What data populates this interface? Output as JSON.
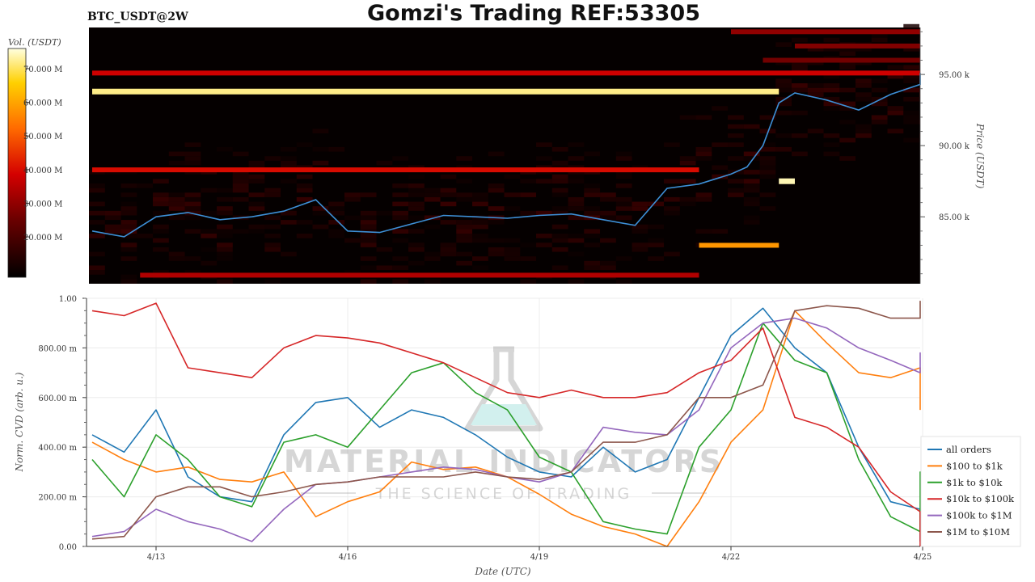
{
  "header": {
    "left_label": "BTC_USDT@2W",
    "title": "Gomzi's Trading REF:53305"
  },
  "watermark": {
    "brand": "MATERIAL INDICATORS",
    "tagline": "THE SCIENCE OF TRADING"
  },
  "chart_data": [
    {
      "type": "heatmap",
      "title": "BTC_USDT@2W",
      "colorbar": {
        "label": "Vol. (USDT)",
        "ticks": [
          "70.000 M",
          "60.000 M",
          "50.000 M",
          "40.000 M",
          "30.000 M",
          "20.000 M"
        ],
        "tick_values": [
          70,
          60,
          50,
          40,
          30,
          20
        ],
        "range": [
          8,
          76
        ]
      },
      "y_axis": {
        "label": "Price (USDT)",
        "ticks": [
          "95.00 k",
          "90.00 k",
          "85.00 k"
        ],
        "tick_values": [
          95,
          90,
          85
        ],
        "range": [
          80.3,
          98.3
        ]
      },
      "x_range": [
        "2025-04-12",
        "2025-04-25 18:00"
      ],
      "price_line_color": "#3d8fd6",
      "price_series": {
        "x": [
          "04-12 00:00",
          "04-12 12:00",
          "04-13 00:00",
          "04-13 12:00",
          "04-14 00:00",
          "04-14 12:00",
          "04-15 00:00",
          "04-15 12:00",
          "04-16 00:00",
          "04-16 12:00",
          "04-17 00:00",
          "04-17 12:00",
          "04-18 00:00",
          "04-18 12:00",
          "04-19 00:00",
          "04-19 12:00",
          "04-20 00:00",
          "04-20 12:00",
          "04-21 00:00",
          "04-21 12:00",
          "04-22 00:00",
          "04-22 06:00",
          "04-22 12:00",
          "04-22 18:00",
          "04-23 00:00",
          "04-23 12:00",
          "04-24 00:00",
          "04-24 12:00",
          "04-25 00:00",
          "04-25 12:00",
          "04-25 18:00"
        ],
        "y": [
          84.0,
          83.6,
          85.0,
          85.3,
          84.8,
          85.0,
          85.4,
          86.2,
          84.0,
          83.9,
          84.5,
          85.1,
          85.0,
          84.9,
          85.1,
          85.2,
          84.8,
          84.4,
          87.0,
          87.3,
          88.0,
          88.5,
          90.0,
          93.0,
          93.7,
          93.2,
          92.5,
          93.6,
          94.3,
          95.1,
          94.7
        ]
      },
      "order_bands": [
        {
          "price": 95.1,
          "x": [
            "04-12",
            "04-25 18:00"
          ],
          "level": "medium-high",
          "vol_m": 38
        },
        {
          "price": 93.8,
          "x": [
            "04-12",
            "04-22 18:00"
          ],
          "level": "very high",
          "vol_m": 72
        },
        {
          "price": 88.3,
          "x": [
            "04-12",
            "04-21 12:00"
          ],
          "level": "high",
          "vol_m": 40
        },
        {
          "price": 83.0,
          "x": [
            "04-21 12:00",
            "04-22 18:00"
          ],
          "level": "orange",
          "vol_m": 58
        },
        {
          "price": 80.9,
          "x": [
            "04-12 18:00",
            "04-21 12:00"
          ],
          "level": "medium-high",
          "vol_m": 34
        },
        {
          "price": 87.5,
          "x": [
            "04-22 18:00",
            "04-23 00:00"
          ],
          "level": "very high",
          "vol_m": 74
        },
        {
          "price": 98.0,
          "x": [
            "04-22 00:00",
            "04-25 18:00"
          ],
          "level": "medium",
          "vol_m": 30
        },
        {
          "price": 97.0,
          "x": [
            "04-23 00:00",
            "04-25 18:00"
          ],
          "level": "medium",
          "vol_m": 28
        },
        {
          "price": 96.0,
          "x": [
            "04-22 12:00",
            "04-25 18:00"
          ],
          "level": "medium",
          "vol_m": 26
        }
      ]
    },
    {
      "type": "line",
      "xlabel": "Date (UTC)",
      "ylabel": "Norm. CVD (arb. u.)",
      "x_ticks": [
        "4/13",
        "4/16",
        "4/19",
        "4/22",
        "4/25"
      ],
      "y_ticks": [
        "1.00",
        "800.00 m",
        "600.00 m",
        "400.00 m",
        "200.00 m",
        "0.00"
      ],
      "y_tick_values": [
        1.0,
        0.8,
        0.6,
        0.4,
        0.2,
        0.0
      ],
      "ylim": [
        0,
        1
      ],
      "grid": true,
      "legend_placement": "right",
      "x": [
        "04-12 00:00",
        "04-12 12:00",
        "04-13 00:00",
        "04-13 12:00",
        "04-14 00:00",
        "04-14 12:00",
        "04-15 00:00",
        "04-15 12:00",
        "04-16 00:00",
        "04-16 12:00",
        "04-17 00:00",
        "04-17 12:00",
        "04-18 00:00",
        "04-18 12:00",
        "04-19 00:00",
        "04-19 12:00",
        "04-20 00:00",
        "04-20 12:00",
        "04-21 00:00",
        "04-21 12:00",
        "04-22 00:00",
        "04-22 12:00",
        "04-23 00:00",
        "04-23 12:00",
        "04-24 00:00",
        "04-24 12:00",
        "04-25 00:00",
        "04-25 12:00",
        "04-25 18:00"
      ],
      "series": [
        {
          "name": "all orders",
          "color": "#1f77b4",
          "values": [
            0.45,
            0.38,
            0.55,
            0.28,
            0.2,
            0.18,
            0.45,
            0.58,
            0.6,
            0.48,
            0.55,
            0.52,
            0.45,
            0.36,
            0.3,
            0.28,
            0.4,
            0.3,
            0.35,
            0.6,
            0.85,
            0.96,
            0.8,
            0.7,
            0.4,
            0.18,
            0.15,
            0.12,
            0.02
          ]
        },
        {
          "name": "$100 to $1k",
          "color": "#ff7f0e",
          "values": [
            0.42,
            0.35,
            0.3,
            0.32,
            0.27,
            0.26,
            0.3,
            0.12,
            0.18,
            0.22,
            0.34,
            0.31,
            0.32,
            0.28,
            0.21,
            0.13,
            0.08,
            0.05,
            0.0,
            0.18,
            0.42,
            0.55,
            0.95,
            0.82,
            0.7,
            0.68,
            0.72,
            0.65,
            0.55
          ]
        },
        {
          "name": "$1k to $10k",
          "color": "#2ca02c",
          "values": [
            0.35,
            0.2,
            0.45,
            0.35,
            0.2,
            0.16,
            0.42,
            0.45,
            0.4,
            0.55,
            0.7,
            0.74,
            0.62,
            0.55,
            0.36,
            0.3,
            0.1,
            0.07,
            0.05,
            0.4,
            0.55,
            0.9,
            0.75,
            0.7,
            0.35,
            0.12,
            0.06,
            0.3,
            0.08
          ]
        },
        {
          "name": "$10k to $100k",
          "color": "#d62728",
          "values": [
            0.95,
            0.93,
            0.98,
            0.72,
            0.7,
            0.68,
            0.8,
            0.85,
            0.84,
            0.82,
            0.78,
            0.74,
            0.68,
            0.62,
            0.6,
            0.63,
            0.6,
            0.6,
            0.62,
            0.7,
            0.75,
            0.88,
            0.52,
            0.48,
            0.4,
            0.22,
            0.14,
            0.12,
            0.0
          ]
        },
        {
          "name": "$100k to $1M",
          "color": "#9467bd",
          "values": [
            0.04,
            0.06,
            0.15,
            0.1,
            0.07,
            0.02,
            0.15,
            0.25,
            0.26,
            0.28,
            0.3,
            0.32,
            0.31,
            0.28,
            0.26,
            0.3,
            0.48,
            0.46,
            0.45,
            0.55,
            0.8,
            0.9,
            0.92,
            0.88,
            0.8,
            0.75,
            0.7,
            0.78,
            0.77
          ]
        },
        {
          "name": "$1M to $10M",
          "color": "#8c564b",
          "values": [
            0.03,
            0.04,
            0.2,
            0.24,
            0.24,
            0.2,
            0.22,
            0.25,
            0.26,
            0.28,
            0.28,
            0.28,
            0.3,
            0.28,
            0.27,
            0.3,
            0.42,
            0.42,
            0.45,
            0.6,
            0.6,
            0.65,
            0.95,
            0.97,
            0.96,
            0.92,
            0.92,
            0.95,
            0.99
          ]
        }
      ]
    }
  ]
}
